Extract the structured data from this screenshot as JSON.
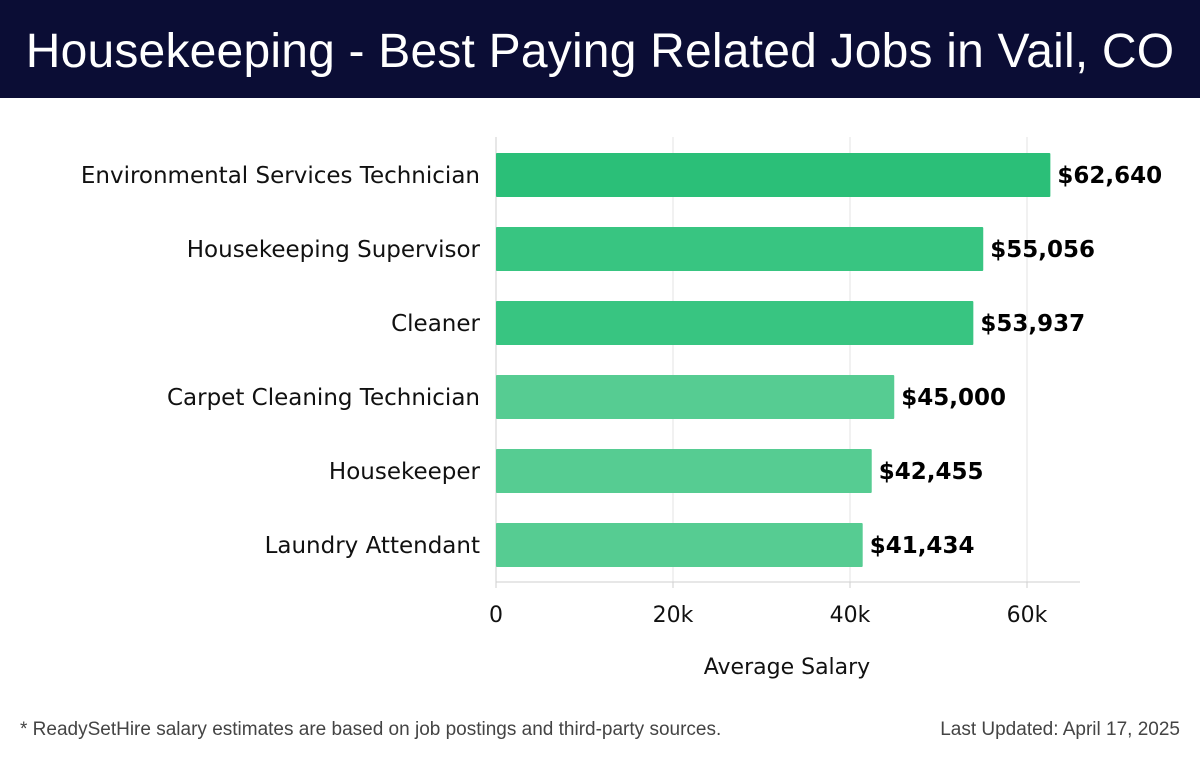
{
  "header": {
    "title": "Housekeeping - Best Paying Related Jobs in Vail, CO"
  },
  "footer": {
    "note": "* ReadySetHire salary estimates are based on job postings and third-party sources.",
    "updated": "Last Updated: April 17, 2025"
  },
  "colors": {
    "header_bg": "#0b0d35",
    "bar_dark": "#2bbf78",
    "bar_mid": "#38c581",
    "bar_light": "#56cc92",
    "grid": "#e3e3e3"
  },
  "chart_data": {
    "type": "bar",
    "orientation": "horizontal",
    "title": "Housekeeping - Best Paying Related Jobs in Vail, CO",
    "xlabel": "Average Salary",
    "ylabel": "",
    "xlim": [
      0,
      66000
    ],
    "xticks": [
      0,
      20000,
      40000,
      60000
    ],
    "xtick_labels": [
      "0",
      "20k",
      "40k",
      "60k"
    ],
    "grid": true,
    "categories": [
      "Environmental Services Technician",
      "Housekeeping Supervisor",
      "Cleaner",
      "Carpet Cleaning Technician",
      "Housekeeper",
      "Laundry Attendant"
    ],
    "values": [
      62640,
      55056,
      53937,
      45000,
      42455,
      41434
    ],
    "value_labels": [
      "$62,640",
      "$55,056",
      "$53,937",
      "$45,000",
      "$42,455",
      "$41,434"
    ],
    "bar_colors": [
      "#2bbf78",
      "#38c581",
      "#38c581",
      "#56cc92",
      "#56cc92",
      "#56cc92"
    ]
  }
}
